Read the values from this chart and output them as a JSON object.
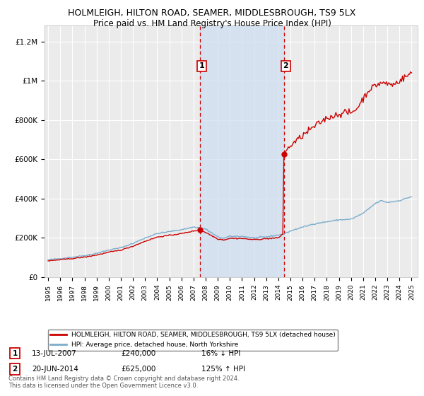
{
  "title": "HOLMLEIGH, HILTON ROAD, SEAMER, MIDDLESBROUGH, TS9 5LX",
  "subtitle": "Price paid vs. HM Land Registry's House Price Index (HPI)",
  "title_fontsize": 9,
  "subtitle_fontsize": 8.5,
  "ylabel_ticks": [
    "£0",
    "£200K",
    "£400K",
    "£600K",
    "£800K",
    "£1M",
    "£1.2M"
  ],
  "ytick_vals": [
    0,
    200000,
    400000,
    600000,
    800000,
    1000000,
    1200000
  ],
  "ylim": [
    0,
    1280000
  ],
  "xlim_start": 1994.7,
  "xlim_end": 2025.5,
  "background_color": "#ffffff",
  "plot_bg_color": "#ebebeb",
  "grid_color": "#ffffff",
  "shade_color": "#ccddf0",
  "shade_alpha": 0.7,
  "sale1_year": 2007.54,
  "sale1_price": 240000,
  "sale2_year": 2014.46,
  "sale2_price": 625000,
  "red_line_color": "#cc0000",
  "blue_line_color": "#7aadcc",
  "marker_box_color": "#cc0000",
  "legend_red_label": "HOLMLEIGH, HILTON ROAD, SEAMER, MIDDLESBROUGH, TS9 5LX (detached house)",
  "legend_blue_label": "HPI: Average price, detached house, North Yorkshire",
  "annotation1_date": "13-JUL-2007",
  "annotation1_price": "£240,000",
  "annotation1_hpi": "16% ↓ HPI",
  "annotation2_date": "20-JUN-2014",
  "annotation2_price": "£625,000",
  "annotation2_hpi": "125% ↑ HPI",
  "footnote": "Contains HM Land Registry data © Crown copyright and database right 2024.\nThis data is licensed under the Open Government Licence v3.0."
}
